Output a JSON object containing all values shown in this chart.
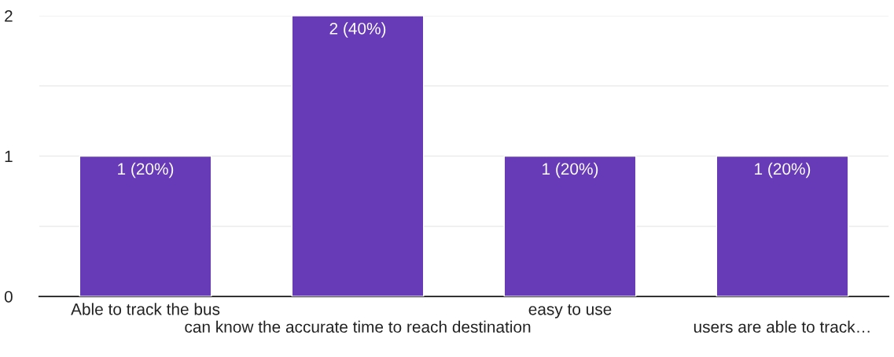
{
  "chart_data": {
    "type": "bar",
    "categories": [
      "Able to track the bus",
      "can know the accurate time to reach destination",
      "easy to use",
      "users are able to track…"
    ],
    "values": [
      1,
      2,
      1,
      1
    ],
    "value_labels": [
      "1 (20%)",
      "2 (40%)",
      "1 (20%)",
      "1 (20%)"
    ],
    "color": "#673ab7",
    "ylim": [
      0,
      2
    ],
    "yticks": [
      0,
      {
        "value": 0.5,
        "label": null
      },
      1,
      {
        "value": 1.5,
        "label": null
      },
      2
    ],
    "grid": "y"
  }
}
